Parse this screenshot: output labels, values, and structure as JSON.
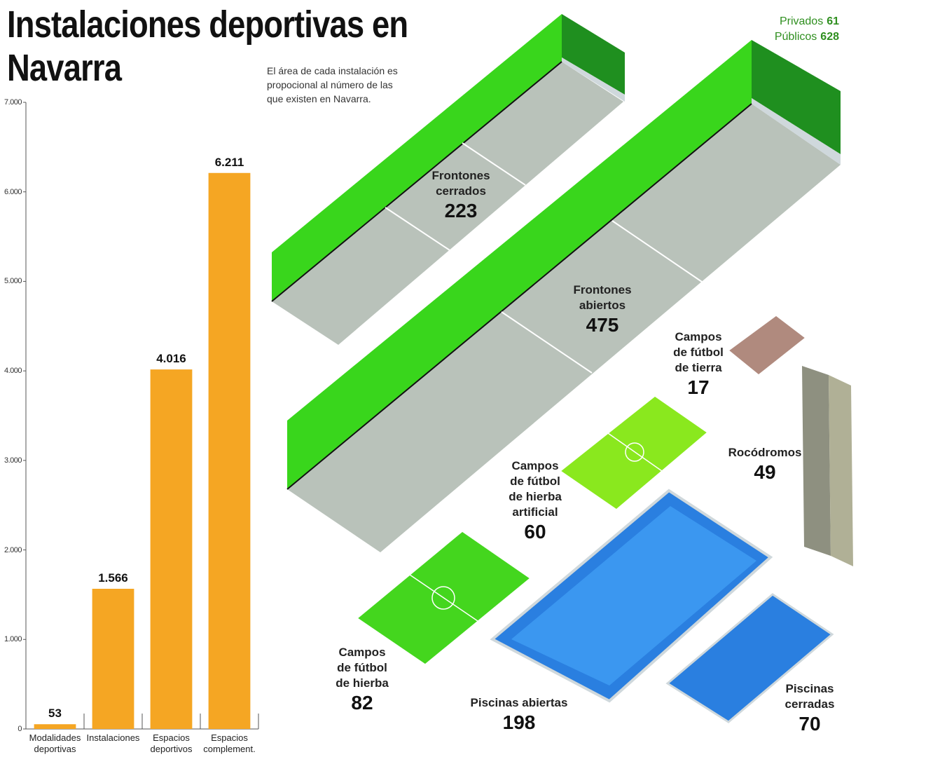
{
  "chart_data": {
    "type": "bar",
    "title": "Instalaciones deportivas en Navarra",
    "categories": [
      "Modalidades deportivas",
      "Instalaciones",
      "Espacios deportivos",
      "Espacios complement."
    ],
    "values": [
      53,
      1566,
      4016,
      6211
    ],
    "value_labels": [
      "53",
      "1.566",
      "4.016",
      "6.211"
    ],
    "color": "#f5a623",
    "ylim": [
      0,
      7000
    ],
    "yticks": [
      0,
      {
        "value": 1000,
        "label": "1.000"
      },
      {
        "value": 2000,
        "label": "2.000"
      },
      {
        "value": 3000,
        "label": "3.000"
      },
      {
        "value": 4000,
        "label": "4.000"
      },
      {
        "value": 5000,
        "label": "5.000"
      },
      {
        "value": 6000,
        "label": "6.000"
      },
      {
        "value": 7000,
        "label": "7.000"
      }
    ],
    "grid": false
  },
  "illustration": {
    "note": "El área de cada instalación es propocional al número de las que existen en Navarra.",
    "legend": [
      {
        "name": "Privados",
        "value": 61
      },
      {
        "name": "Públicos",
        "value": 628
      }
    ],
    "items": [
      {
        "label": "Frontones cerrados",
        "value": 223
      },
      {
        "label": "Frontones abiertos",
        "value": 475
      },
      {
        "label": "Campos de fútbol de tierra",
        "value": 17
      },
      {
        "label": "Rocódromos",
        "value": 49
      },
      {
        "label": "Campos de fútbol de hierba artificial",
        "value": 60
      },
      {
        "label": "Campos de fútbol de hierba",
        "value": 82
      },
      {
        "label": "Piscinas abiertas",
        "value": 198
      },
      {
        "label": "Piscinas cerradas",
        "value": 70
      }
    ]
  }
}
